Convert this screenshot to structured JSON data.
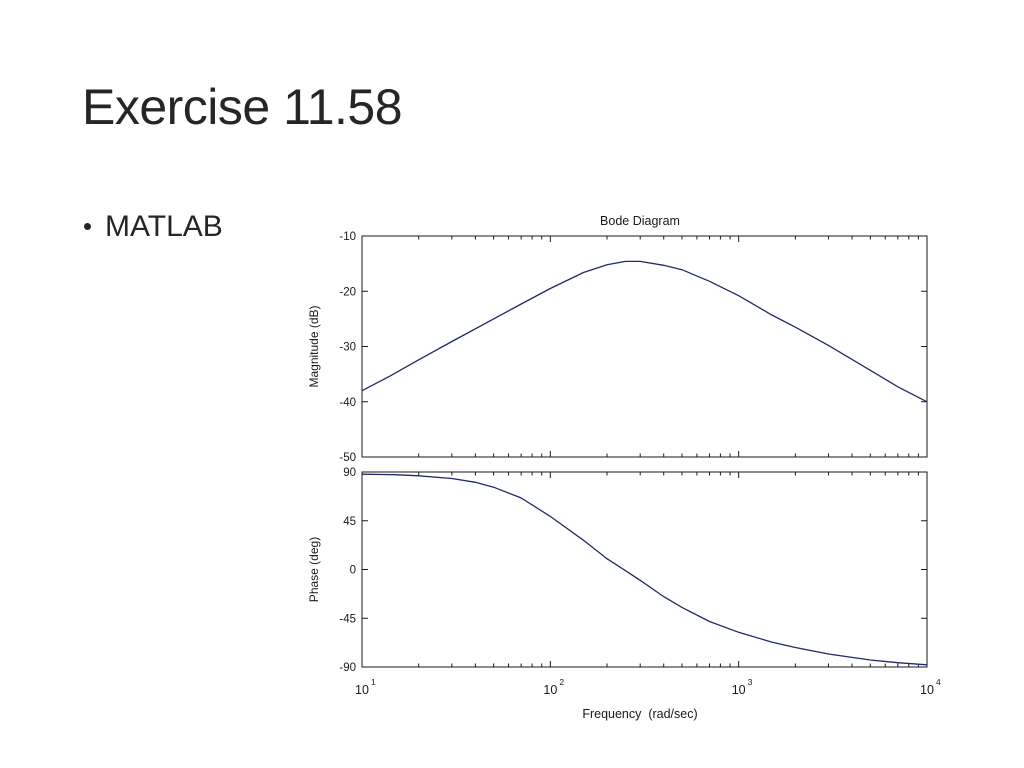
{
  "slide": {
    "title": "Exercise 11.58",
    "bullets": [
      "MATLAB"
    ]
  },
  "chart_data": {
    "type": "line",
    "title": "Bode Diagram",
    "xlabel": "Frequency  (rad/sec)",
    "x_scale": "log",
    "xlim": [
      10,
      10000
    ],
    "x_ticks": [
      10,
      100,
      1000,
      10000
    ],
    "x_tick_labels": [
      {
        "base": "10",
        "exp": "1"
      },
      {
        "base": "10",
        "exp": "2"
      },
      {
        "base": "10",
        "exp": "3"
      },
      {
        "base": "10",
        "exp": "4"
      }
    ],
    "line_color": "#1f2a6b",
    "subplots": [
      {
        "name": "magnitude",
        "ylabel": "Magnitude (dB)",
        "ylim": [
          -50,
          -10
        ],
        "y_ticks": [
          -10,
          -20,
          -30,
          -40,
          -50
        ],
        "series": [
          {
            "x": [
              10,
              14,
              20,
              30,
              50,
              70,
              100,
              150,
              200,
              250,
              300,
              400,
              500,
              700,
              1000,
              1500,
              2000,
              3000,
              5000,
              7000,
              10000
            ],
            "y": [
              -38,
              -35.4,
              -32.4,
              -29.1,
              -25,
              -22.3,
              -19.5,
              -16.6,
              -15.2,
              -14.6,
              -14.6,
              -15.3,
              -16.1,
              -18.2,
              -20.8,
              -24.3,
              -26.5,
              -29.8,
              -34.3,
              -37.3,
              -40
            ]
          }
        ]
      },
      {
        "name": "phase",
        "ylabel": "Phase (deg)",
        "ylim": [
          -90,
          90
        ],
        "y_ticks": [
          90,
          45,
          0,
          -45,
          -90
        ],
        "series": [
          {
            "x": [
              10,
              15,
              20,
              30,
              40,
              50,
              70,
              100,
              150,
              200,
              250,
              300,
              400,
              500,
              700,
              1000,
              1500,
              2000,
              3000,
              5000,
              7000,
              10000
            ],
            "y": [
              88,
              87.5,
              86.5,
              84,
              80.5,
              76,
              66,
              49,
              27,
              10,
              -1,
              -10,
              -25,
              -35,
              -48,
              -58,
              -67,
              -72,
              -78,
              -83.5,
              -86,
              -88
            ]
          }
        ]
      }
    ]
  }
}
